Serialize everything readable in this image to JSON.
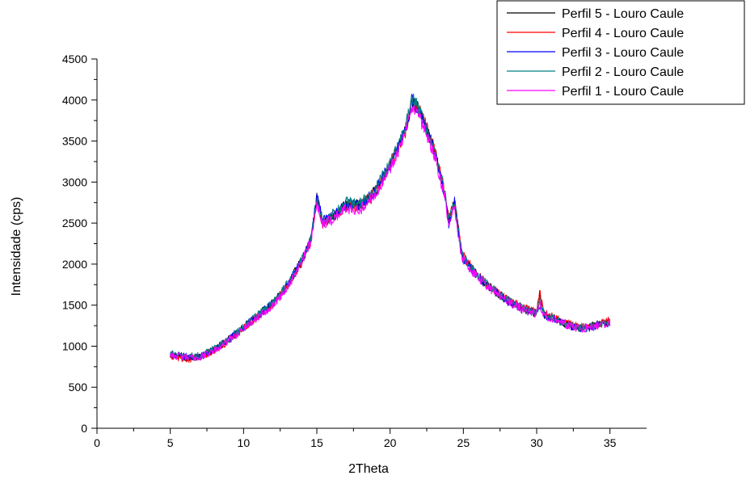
{
  "chart_data": {
    "type": "line",
    "xlabel": "2Theta",
    "ylabel": "Intensidade (cps)",
    "xlim": [
      0,
      37.5
    ],
    "ylim": [
      0,
      4500
    ],
    "x_ticks": [
      0,
      5,
      10,
      15,
      20,
      25,
      30,
      35
    ],
    "y_ticks": [
      0,
      500,
      1000,
      1500,
      2000,
      2500,
      3000,
      3500,
      4000,
      4500
    ],
    "grid": false,
    "legend_position": "top-right",
    "series": [
      {
        "name": "Perfil 5 - Louro Caule",
        "color": "#000000",
        "x_range": [
          5,
          35
        ],
        "noise": 55,
        "points": [
          [
            5,
            900
          ],
          [
            6,
            860
          ],
          [
            7,
            870
          ],
          [
            8,
            960
          ],
          [
            9,
            1080
          ],
          [
            10,
            1230
          ],
          [
            11,
            1380
          ],
          [
            12,
            1520
          ],
          [
            13,
            1740
          ],
          [
            14,
            2050
          ],
          [
            14.6,
            2300
          ],
          [
            15,
            2800
          ],
          [
            15.4,
            2510
          ],
          [
            16,
            2560
          ],
          [
            17,
            2720
          ],
          [
            18,
            2720
          ],
          [
            19,
            2890
          ],
          [
            20,
            3200
          ],
          [
            21,
            3600
          ],
          [
            21.5,
            3980
          ],
          [
            22,
            3880
          ],
          [
            23,
            3400
          ],
          [
            23.7,
            2900
          ],
          [
            24,
            2520
          ],
          [
            24.4,
            2760
          ],
          [
            24.9,
            2100
          ],
          [
            26,
            1850
          ],
          [
            27,
            1690
          ],
          [
            28,
            1560
          ],
          [
            29,
            1460
          ],
          [
            30,
            1400
          ],
          [
            30.2,
            1620
          ],
          [
            30.5,
            1390
          ],
          [
            31,
            1350
          ],
          [
            32,
            1270
          ],
          [
            33,
            1220
          ],
          [
            34,
            1250
          ],
          [
            35,
            1300
          ]
        ]
      },
      {
        "name": "Perfil 4 - Louro Caule",
        "color": "#ff0000",
        "x_range": [
          5,
          35
        ],
        "noise": 55,
        "points": [
          [
            5,
            880
          ],
          [
            6,
            840
          ],
          [
            7,
            860
          ],
          [
            8,
            950
          ],
          [
            9,
            1070
          ],
          [
            10,
            1220
          ],
          [
            11,
            1370
          ],
          [
            12,
            1510
          ],
          [
            13,
            1730
          ],
          [
            14,
            2040
          ],
          [
            14.6,
            2290
          ],
          [
            15,
            2790
          ],
          [
            15.4,
            2500
          ],
          [
            16,
            2560
          ],
          [
            17,
            2700
          ],
          [
            18,
            2700
          ],
          [
            19,
            2880
          ],
          [
            20,
            3190
          ],
          [
            21,
            3590
          ],
          [
            21.5,
            3960
          ],
          [
            22,
            3900
          ],
          [
            23,
            3420
          ],
          [
            23.7,
            2920
          ],
          [
            24,
            2540
          ],
          [
            24.4,
            2770
          ],
          [
            24.9,
            2120
          ],
          [
            26,
            1860
          ],
          [
            27,
            1700
          ],
          [
            28,
            1570
          ],
          [
            29,
            1480
          ],
          [
            30,
            1420
          ],
          [
            30.2,
            1680
          ],
          [
            30.5,
            1400
          ],
          [
            31,
            1360
          ],
          [
            32,
            1280
          ],
          [
            33,
            1230
          ],
          [
            34,
            1260
          ],
          [
            35,
            1320
          ]
        ]
      },
      {
        "name": "Perfil 3 - Louro Caule",
        "color": "#0000ff",
        "x_range": [
          5,
          35
        ],
        "noise": 55,
        "points": [
          [
            5,
            900
          ],
          [
            6,
            870
          ],
          [
            7,
            870
          ],
          [
            8,
            960
          ],
          [
            9,
            1080
          ],
          [
            10,
            1230
          ],
          [
            11,
            1380
          ],
          [
            12,
            1520
          ],
          [
            13,
            1740
          ],
          [
            14,
            2060
          ],
          [
            14.6,
            2310
          ],
          [
            15,
            2820
          ],
          [
            15.4,
            2520
          ],
          [
            16,
            2570
          ],
          [
            17,
            2720
          ],
          [
            18,
            2720
          ],
          [
            19,
            2900
          ],
          [
            20,
            3210
          ],
          [
            21,
            3610
          ],
          [
            21.5,
            4000
          ],
          [
            22,
            3860
          ],
          [
            23,
            3380
          ],
          [
            23.7,
            2880
          ],
          [
            24,
            2500
          ],
          [
            24.4,
            2750
          ],
          [
            24.9,
            2090
          ],
          [
            26,
            1840
          ],
          [
            27,
            1680
          ],
          [
            28,
            1550
          ],
          [
            29,
            1450
          ],
          [
            30,
            1390
          ],
          [
            30.2,
            1500
          ],
          [
            30.5,
            1380
          ],
          [
            31,
            1340
          ],
          [
            32,
            1260
          ],
          [
            33,
            1210
          ],
          [
            34,
            1240
          ],
          [
            35,
            1290
          ]
        ]
      },
      {
        "name": "Perfil 2 - Louro Caule",
        "color": "#008080",
        "x_range": [
          5,
          35
        ],
        "noise": 55,
        "points": [
          [
            5,
            910
          ],
          [
            6,
            880
          ],
          [
            7,
            880
          ],
          [
            8,
            970
          ],
          [
            9,
            1090
          ],
          [
            10,
            1240
          ],
          [
            11,
            1390
          ],
          [
            12,
            1530
          ],
          [
            13,
            1750
          ],
          [
            14,
            2060
          ],
          [
            14.6,
            2310
          ],
          [
            15,
            2830
          ],
          [
            15.4,
            2530
          ],
          [
            16,
            2590
          ],
          [
            17,
            2750
          ],
          [
            18,
            2740
          ],
          [
            19,
            2920
          ],
          [
            20,
            3230
          ],
          [
            21,
            3630
          ],
          [
            21.5,
            4020
          ],
          [
            22,
            3880
          ],
          [
            23,
            3400
          ],
          [
            23.7,
            2900
          ],
          [
            24,
            2520
          ],
          [
            24.4,
            2760
          ],
          [
            24.9,
            2110
          ],
          [
            26,
            1860
          ],
          [
            27,
            1700
          ],
          [
            28,
            1560
          ],
          [
            29,
            1470
          ],
          [
            30,
            1410
          ],
          [
            30.2,
            1560
          ],
          [
            30.5,
            1390
          ],
          [
            31,
            1350
          ],
          [
            32,
            1270
          ],
          [
            33,
            1220
          ],
          [
            34,
            1250
          ],
          [
            35,
            1300
          ]
        ]
      },
      {
        "name": "Perfil 1 - Louro Caule",
        "color": "#ff00ff",
        "x_range": [
          5,
          35
        ],
        "noise": 55,
        "points": [
          [
            5,
            900
          ],
          [
            6,
            860
          ],
          [
            7,
            860
          ],
          [
            8,
            950
          ],
          [
            9,
            1070
          ],
          [
            10,
            1210
          ],
          [
            11,
            1360
          ],
          [
            12,
            1500
          ],
          [
            13,
            1720
          ],
          [
            14,
            2030
          ],
          [
            14.6,
            2280
          ],
          [
            15,
            2760
          ],
          [
            15.4,
            2480
          ],
          [
            16,
            2540
          ],
          [
            17,
            2680
          ],
          [
            18,
            2670
          ],
          [
            19,
            2860
          ],
          [
            20,
            3170
          ],
          [
            21,
            3560
          ],
          [
            21.5,
            3900
          ],
          [
            22,
            3780
          ],
          [
            23,
            3330
          ],
          [
            23.7,
            2840
          ],
          [
            24,
            2460
          ],
          [
            24.4,
            2700
          ],
          [
            24.9,
            2060
          ],
          [
            26,
            1830
          ],
          [
            27,
            1680
          ],
          [
            28,
            1550
          ],
          [
            29,
            1450
          ],
          [
            30,
            1390
          ],
          [
            30.2,
            1520
          ],
          [
            30.5,
            1380
          ],
          [
            31,
            1340
          ],
          [
            32,
            1260
          ],
          [
            33,
            1210
          ],
          [
            34,
            1240
          ],
          [
            35,
            1290
          ]
        ]
      }
    ]
  }
}
